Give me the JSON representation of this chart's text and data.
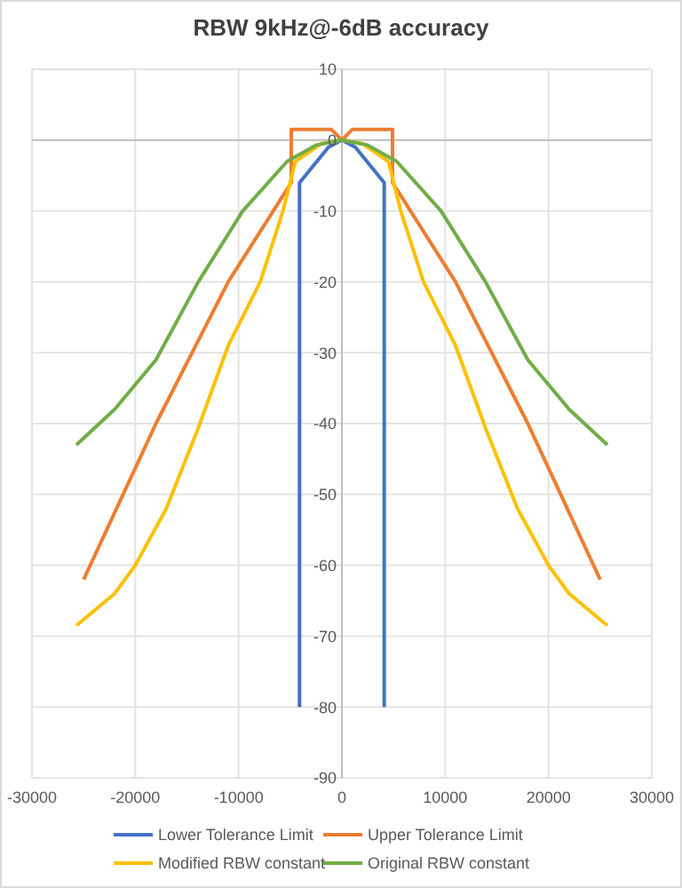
{
  "chart_data": {
    "type": "line",
    "title": "RBW 9kHz@-6dB accuracy",
    "xlim": [
      -30000,
      30000
    ],
    "xticks": [
      -30000,
      -20000,
      -10000,
      0,
      10000,
      20000,
      30000
    ],
    "ylim": [
      -90,
      10
    ],
    "yticks": [
      -90,
      -80,
      -70,
      -60,
      -50,
      -40,
      -30,
      -20,
      -10,
      0,
      10
    ],
    "grid": true,
    "legend": "bottom",
    "marker": "none",
    "line_style": "solid",
    "series": [
      {
        "name": "Lower Tolerance Limit",
        "color": "#4472c4",
        "x": [
          -4100,
          -4100,
          -1300,
          0,
          1300,
          4100,
          4100
        ],
        "values": [
          -80,
          -6,
          -1,
          0,
          -1,
          -6,
          -80
        ]
      },
      {
        "name": "Upper Tolerance Limit",
        "color": "#ed7d31",
        "x": [
          -25000,
          -18000,
          -11000,
          -4900,
          -4900,
          -1000,
          0,
          1000,
          4900,
          4900,
          11000,
          18000,
          25000
        ],
        "values": [
          -62,
          -40,
          -20,
          -6,
          1.5,
          1.5,
          0,
          1.5,
          1.5,
          -6,
          -20,
          -40,
          -62
        ]
      },
      {
        "name": "Modified RBW constant",
        "color": "#ffc000",
        "x": [
          -25700,
          -22000,
          -20000,
          -17000,
          -14000,
          -11000,
          -7900,
          -5700,
          -4500,
          -2000,
          0,
          2000,
          4500,
          5700,
          7900,
          11000,
          14000,
          17000,
          20000,
          22000,
          25700
        ],
        "values": [
          -68.5,
          -64,
          -60,
          -52,
          -41,
          -29,
          -20,
          -10,
          -3,
          -0.5,
          0,
          -0.5,
          -3,
          -10,
          -20,
          -29,
          -41,
          -52,
          -60,
          -64,
          -68.5
        ]
      },
      {
        "name": "Original RBW constant",
        "color": "#70ad47",
        "x": [
          -25700,
          -22000,
          -18000,
          -13900,
          -9600,
          -5300,
          -2500,
          0,
          2500,
          5300,
          9600,
          13900,
          18000,
          22000,
          25700
        ],
        "values": [
          -43,
          -38,
          -31,
          -20,
          -10,
          -3,
          -0.7,
          0,
          -0.7,
          -3,
          -10,
          -20,
          -31,
          -38,
          -43
        ]
      }
    ]
  }
}
